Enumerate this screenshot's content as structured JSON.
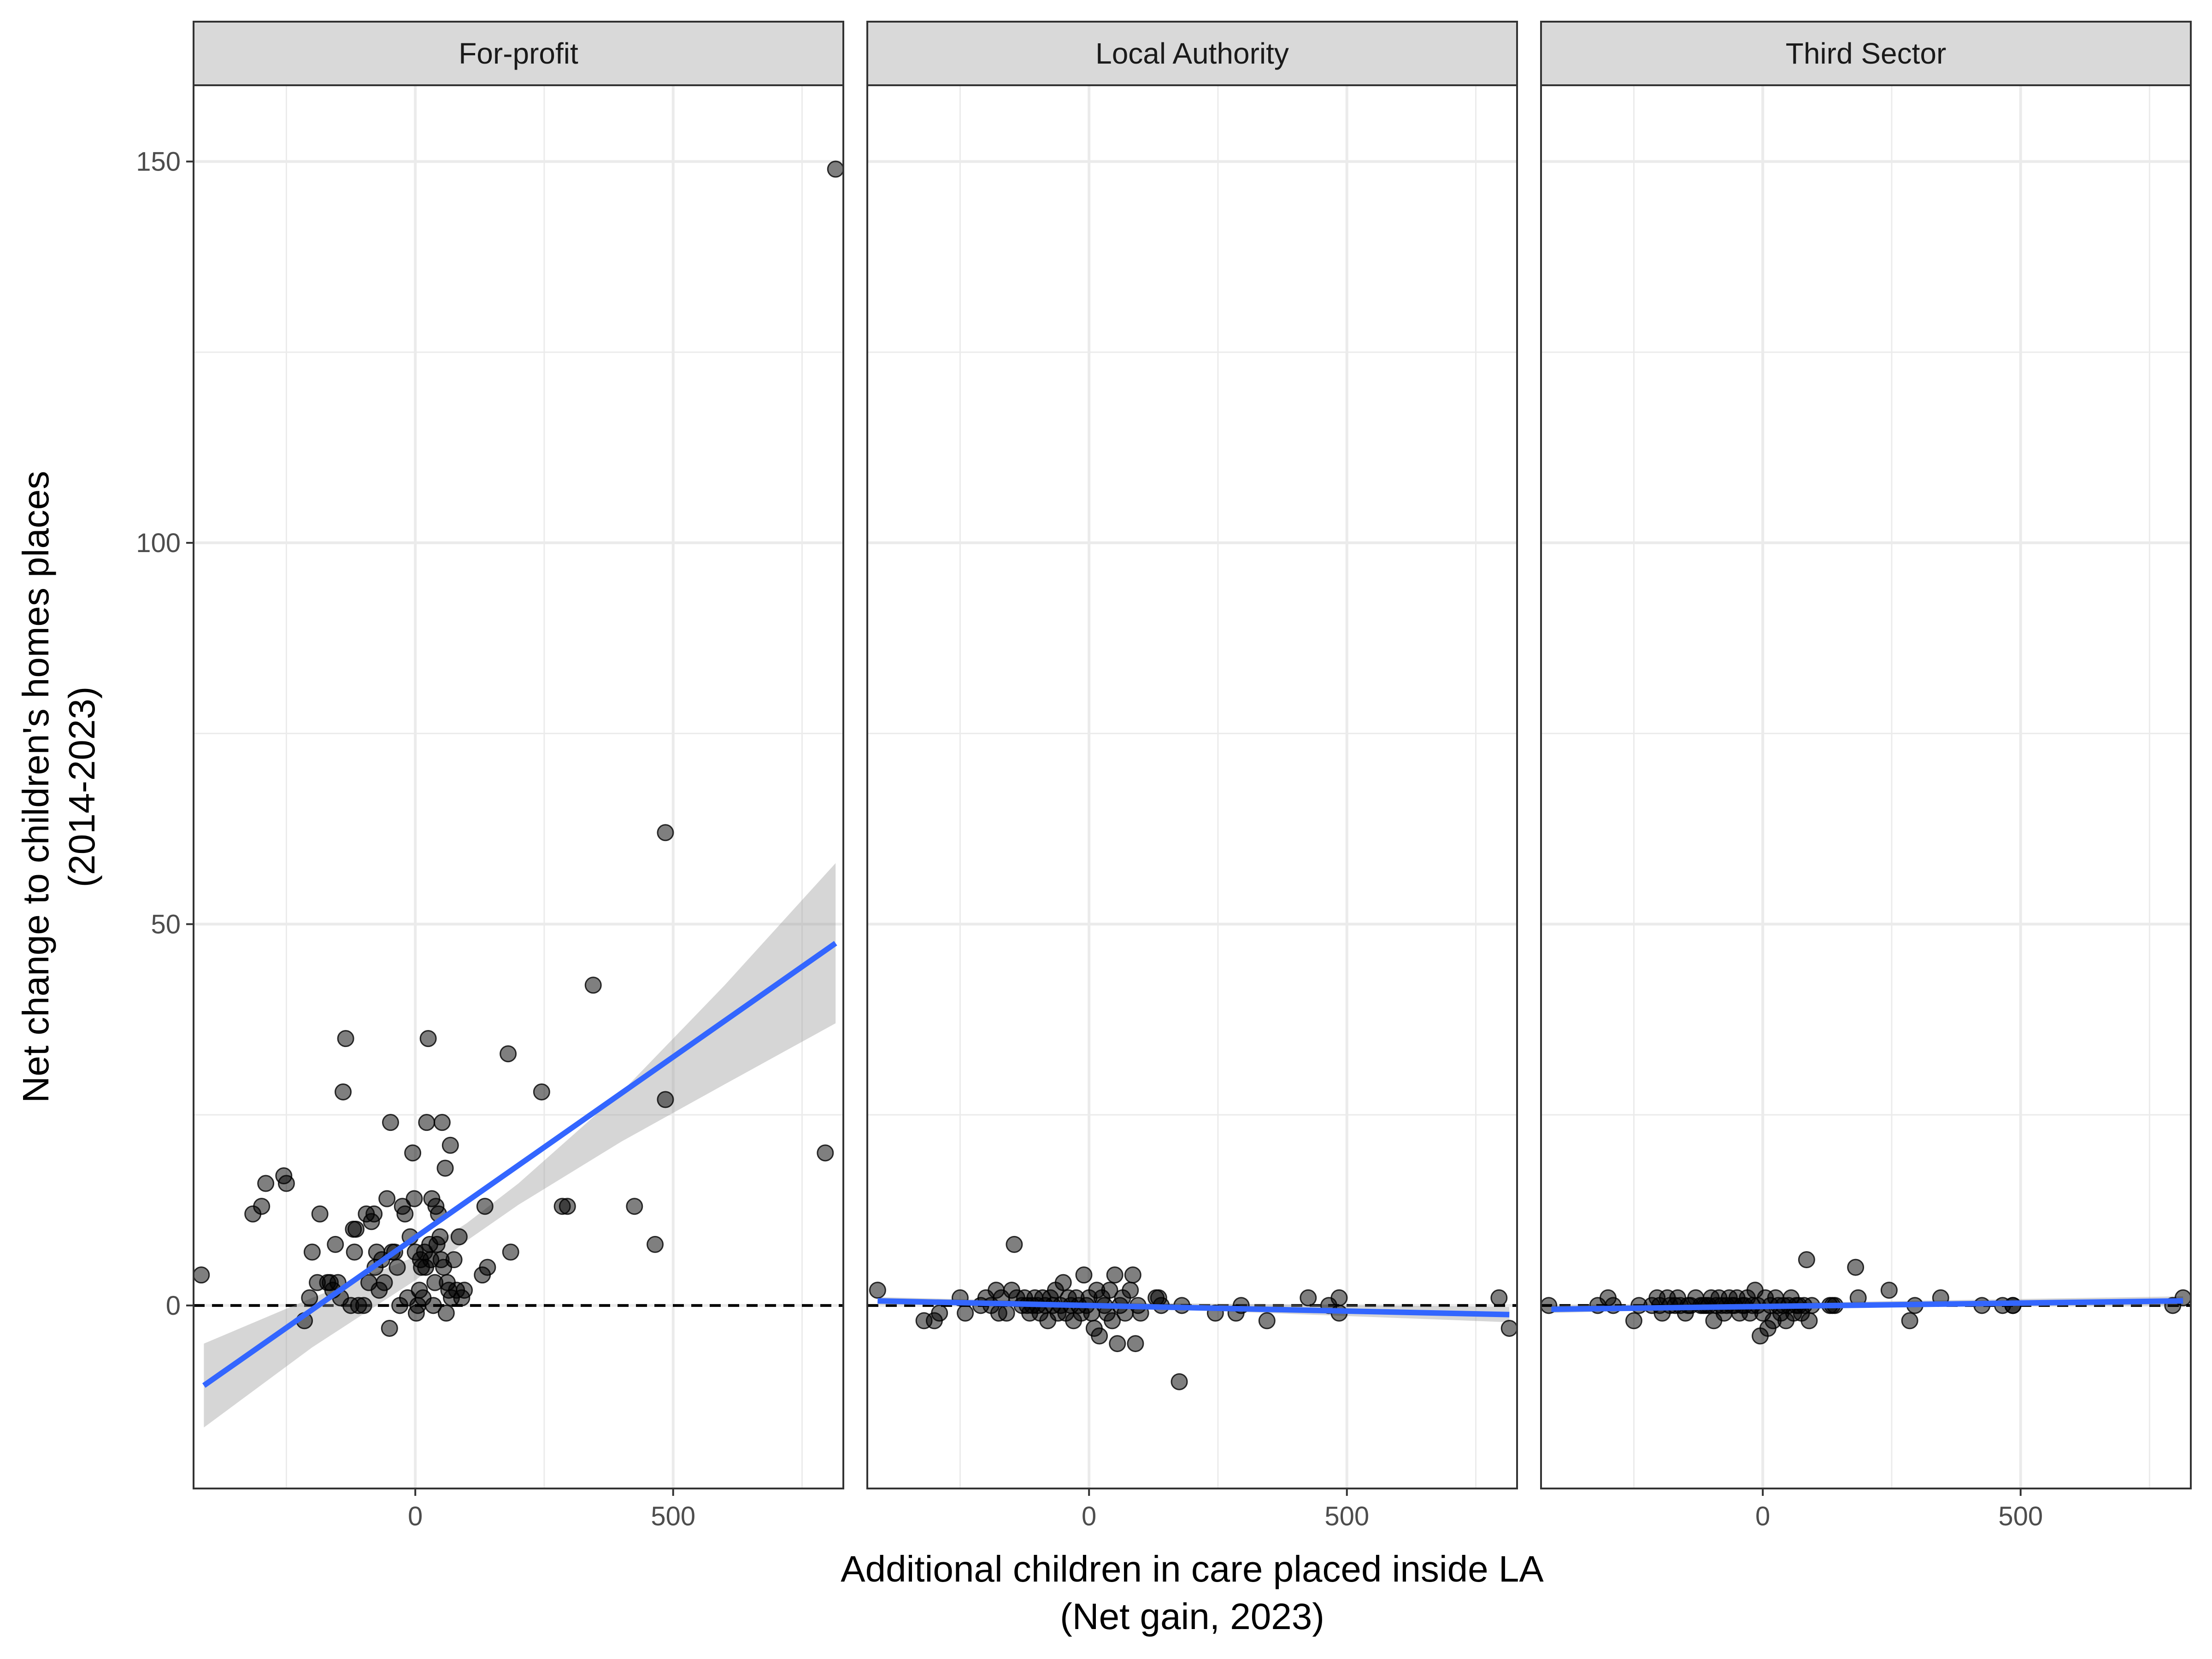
{
  "chart_data": {
    "type": "scatter",
    "facets": [
      "For-profit",
      "Local Authority",
      "Third Sector"
    ],
    "xlabel": [
      "Additional children in care placed inside LA",
      "(Net gain, 2023)"
    ],
    "ylabel": [
      "Net change to children's homes places",
      "(2014-2023)"
    ],
    "x_ticks": [
      0,
      500
    ],
    "y_ticks": [
      0,
      50,
      100,
      150
    ],
    "xlim": [
      -430,
      830
    ],
    "ylim": [
      -24,
      160
    ],
    "reference_line": {
      "y": 0,
      "style": "dashed"
    },
    "grid": true,
    "colors": {
      "points": "#000000",
      "fit_line": "#3366ff",
      "ribbon": "#999999",
      "strip_fill": "#d9d9d9",
      "grid": "#ebebeb"
    },
    "panels": [
      {
        "name": "For-profit",
        "fit": {
          "x1": -410,
          "y1": -10.5,
          "x2": 815,
          "y2": 47.5
        },
        "ribbon": {
          "x": [
            -410,
            -200,
            0,
            100,
            200,
            400,
            600,
            815
          ],
          "lower": [
            -16,
            -5.5,
            3.3,
            8.5,
            13.2,
            21.5,
            29,
            37
          ],
          "upper": [
            -5,
            1,
            6.4,
            10.8,
            16,
            28,
            42,
            58
          ]
        },
        "points": [
          [
            -415,
            4
          ],
          [
            -315,
            12
          ],
          [
            -298,
            13
          ],
          [
            -290,
            16
          ],
          [
            -255,
            17
          ],
          [
            -250,
            16
          ],
          [
            -215,
            -2
          ],
          [
            -205,
            1
          ],
          [
            -200,
            7
          ],
          [
            -190,
            3
          ],
          [
            -185,
            12
          ],
          [
            -170,
            3
          ],
          [
            -160,
            2
          ],
          [
            -165,
            3
          ],
          [
            -155,
            8
          ],
          [
            -150,
            3
          ],
          [
            -145,
            1
          ],
          [
            -140,
            28
          ],
          [
            -135,
            35
          ],
          [
            -125,
            0
          ],
          [
            -120,
            10
          ],
          [
            -118,
            7
          ],
          [
            -115,
            10
          ],
          [
            -110,
            0
          ],
          [
            -100,
            0
          ],
          [
            -95,
            12
          ],
          [
            -90,
            3
          ],
          [
            -85,
            11
          ],
          [
            -80,
            12
          ],
          [
            -78,
            5
          ],
          [
            -75,
            7
          ],
          [
            -70,
            2
          ],
          [
            -65,
            6
          ],
          [
            -60,
            3
          ],
          [
            -55,
            14
          ],
          [
            -50,
            -3
          ],
          [
            -48,
            24
          ],
          [
            -45,
            7
          ],
          [
            -40,
            7
          ],
          [
            -35,
            5
          ],
          [
            -30,
            0
          ],
          [
            -25,
            13
          ],
          [
            -20,
            12
          ],
          [
            -15,
            1
          ],
          [
            -10,
            9
          ],
          [
            -5,
            20
          ],
          [
            -2,
            14
          ],
          [
            0,
            7
          ],
          [
            2,
            -1
          ],
          [
            5,
            0
          ],
          [
            8,
            2
          ],
          [
            10,
            6
          ],
          [
            12,
            5
          ],
          [
            15,
            1
          ],
          [
            18,
            7
          ],
          [
            20,
            5
          ],
          [
            22,
            24
          ],
          [
            25,
            35
          ],
          [
            28,
            8
          ],
          [
            30,
            6
          ],
          [
            32,
            14
          ],
          [
            35,
            0
          ],
          [
            38,
            3
          ],
          [
            40,
            13
          ],
          [
            42,
            8
          ],
          [
            45,
            12
          ],
          [
            48,
            9
          ],
          [
            50,
            6
          ],
          [
            52,
            24
          ],
          [
            55,
            5
          ],
          [
            58,
            18
          ],
          [
            60,
            -1
          ],
          [
            62,
            3
          ],
          [
            65,
            2
          ],
          [
            68,
            21
          ],
          [
            70,
            1
          ],
          [
            75,
            6
          ],
          [
            80,
            2
          ],
          [
            85,
            9
          ],
          [
            90,
            1
          ],
          [
            95,
            2
          ],
          [
            130,
            4
          ],
          [
            135,
            13
          ],
          [
            140,
            5
          ],
          [
            180,
            33
          ],
          [
            185,
            7
          ],
          [
            245,
            28
          ],
          [
            285,
            13
          ],
          [
            295,
            13
          ],
          [
            345,
            42
          ],
          [
            425,
            13
          ],
          [
            465,
            8
          ],
          [
            485,
            62
          ],
          [
            485,
            27
          ],
          [
            795,
            20
          ],
          [
            815,
            149
          ]
        ]
      },
      {
        "name": "Local Authority",
        "fit": {
          "x1": -410,
          "y1": 0.6,
          "x2": 815,
          "y2": -1.2
        },
        "ribbon": {
          "x": [
            -410,
            0,
            815
          ],
          "lower": [
            0.1,
            -0.1,
            -2.2
          ],
          "upper": [
            1.1,
            0.4,
            -0.2
          ]
        },
        "points": [
          [
            -410,
            2
          ],
          [
            -320,
            -2
          ],
          [
            -300,
            -2
          ],
          [
            -290,
            -1
          ],
          [
            -250,
            1
          ],
          [
            -240,
            -1
          ],
          [
            -210,
            0
          ],
          [
            -200,
            1
          ],
          [
            -190,
            0
          ],
          [
            -180,
            2
          ],
          [
            -175,
            -1
          ],
          [
            -170,
            1
          ],
          [
            -160,
            -1
          ],
          [
            -150,
            2
          ],
          [
            -145,
            8
          ],
          [
            -140,
            1
          ],
          [
            -130,
            0
          ],
          [
            -125,
            1
          ],
          [
            -120,
            0
          ],
          [
            -115,
            -1
          ],
          [
            -110,
            0
          ],
          [
            -105,
            1
          ],
          [
            -100,
            0
          ],
          [
            -95,
            -1
          ],
          [
            -90,
            1
          ],
          [
            -85,
            0
          ],
          [
            -80,
            -2
          ],
          [
            -75,
            1
          ],
          [
            -70,
            0
          ],
          [
            -65,
            2
          ],
          [
            -60,
            -1
          ],
          [
            -55,
            0
          ],
          [
            -50,
            3
          ],
          [
            -45,
            -1
          ],
          [
            -40,
            1
          ],
          [
            -35,
            0
          ],
          [
            -30,
            -2
          ],
          [
            -25,
            1
          ],
          [
            -20,
            0
          ],
          [
            -15,
            -1
          ],
          [
            -10,
            4
          ],
          [
            -5,
            0
          ],
          [
            0,
            1
          ],
          [
            5,
            -1
          ],
          [
            10,
            -3
          ],
          [
            15,
            2
          ],
          [
            20,
            -4
          ],
          [
            25,
            1
          ],
          [
            30,
            0
          ],
          [
            35,
            -1
          ],
          [
            40,
            2
          ],
          [
            45,
            -2
          ],
          [
            50,
            4
          ],
          [
            55,
            -5
          ],
          [
            60,
            0
          ],
          [
            65,
            1
          ],
          [
            70,
            -1
          ],
          [
            80,
            2
          ],
          [
            85,
            4
          ],
          [
            90,
            -5
          ],
          [
            95,
            0
          ],
          [
            100,
            -1
          ],
          [
            130,
            1
          ],
          [
            135,
            1
          ],
          [
            140,
            0
          ],
          [
            175,
            -10
          ],
          [
            180,
            0
          ],
          [
            245,
            -1
          ],
          [
            285,
            -1
          ],
          [
            295,
            0
          ],
          [
            345,
            -2
          ],
          [
            425,
            1
          ],
          [
            465,
            0
          ],
          [
            485,
            1
          ],
          [
            485,
            -1
          ],
          [
            795,
            1
          ],
          [
            815,
            -3
          ]
        ]
      },
      {
        "name": "Third Sector",
        "fit": {
          "x1": -410,
          "y1": -0.5,
          "x2": 815,
          "y2": 0.6
        },
        "ribbon": {
          "x": [
            -410,
            0,
            815
          ],
          "lower": [
            -1.0,
            -0.2,
            0.0
          ],
          "upper": [
            0.0,
            0.3,
            1.2
          ]
        },
        "points": [
          [
            -415,
            0
          ],
          [
            -320,
            0
          ],
          [
            -300,
            1
          ],
          [
            -290,
            0
          ],
          [
            -250,
            -2
          ],
          [
            -240,
            0
          ],
          [
            -215,
            0
          ],
          [
            -205,
            1
          ],
          [
            -200,
            0
          ],
          [
            -195,
            -1
          ],
          [
            -185,
            1
          ],
          [
            -180,
            0
          ],
          [
            -170,
            0
          ],
          [
            -165,
            1
          ],
          [
            -160,
            0
          ],
          [
            -150,
            -1
          ],
          [
            -145,
            0
          ],
          [
            -140,
            0
          ],
          [
            -130,
            1
          ],
          [
            -120,
            0
          ],
          [
            -115,
            0
          ],
          [
            -110,
            0
          ],
          [
            -105,
            0
          ],
          [
            -100,
            1
          ],
          [
            -95,
            -2
          ],
          [
            -90,
            0
          ],
          [
            -85,
            1
          ],
          [
            -80,
            0
          ],
          [
            -75,
            -1
          ],
          [
            -70,
            0
          ],
          [
            -65,
            1
          ],
          [
            -60,
            0
          ],
          [
            -55,
            0
          ],
          [
            -50,
            1
          ],
          [
            -45,
            -1
          ],
          [
            -40,
            0
          ],
          [
            -35,
            0
          ],
          [
            -30,
            1
          ],
          [
            -25,
            -1
          ],
          [
            -20,
            0
          ],
          [
            -15,
            2
          ],
          [
            -10,
            0
          ],
          [
            -5,
            -4
          ],
          [
            0,
            -1
          ],
          [
            5,
            1
          ],
          [
            10,
            -3
          ],
          [
            15,
            0
          ],
          [
            20,
            -2
          ],
          [
            25,
            1
          ],
          [
            30,
            0
          ],
          [
            35,
            -1
          ],
          [
            40,
            0
          ],
          [
            45,
            -2
          ],
          [
            50,
            0
          ],
          [
            55,
            1
          ],
          [
            60,
            -1
          ],
          [
            65,
            0
          ],
          [
            70,
            0
          ],
          [
            75,
            -1
          ],
          [
            80,
            0
          ],
          [
            85,
            6
          ],
          [
            90,
            -2
          ],
          [
            95,
            0
          ],
          [
            130,
            0
          ],
          [
            135,
            0
          ],
          [
            140,
            0
          ],
          [
            180,
            5
          ],
          [
            185,
            1
          ],
          [
            245,
            2
          ],
          [
            285,
            -2
          ],
          [
            295,
            0
          ],
          [
            345,
            1
          ],
          [
            425,
            0
          ],
          [
            465,
            0
          ],
          [
            485,
            0
          ],
          [
            485,
            0
          ],
          [
            795,
            0
          ],
          [
            815,
            1
          ]
        ]
      }
    ]
  }
}
